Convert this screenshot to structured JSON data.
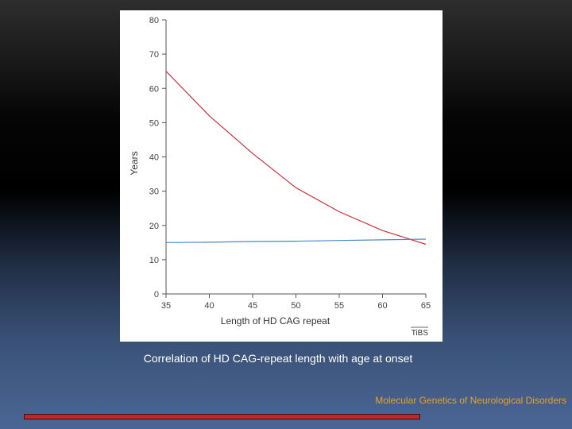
{
  "slide": {
    "caption": "Correlation of HD CAG-repeat length with age at onset",
    "footer_title": "Molecular Genetics of Neurological Disorders"
  },
  "chart_data": {
    "type": "line",
    "title": "",
    "xlabel": "Length of HD CAG repeat",
    "ylabel": "Years",
    "xlim": [
      35,
      65
    ],
    "ylim": [
      0,
      80
    ],
    "x_ticks": [
      35,
      40,
      45,
      50,
      55,
      60,
      65
    ],
    "y_ticks": [
      0,
      10,
      20,
      30,
      40,
      50,
      60,
      70,
      80
    ],
    "grid": false,
    "legend": "none",
    "credit": "TiBS",
    "series": [
      {
        "color": "#c8323c",
        "x": [
          35,
          40,
          45,
          50,
          55,
          60,
          65
        ],
        "y": [
          65,
          52,
          41,
          31,
          24,
          18.5,
          14.5
        ]
      },
      {
        "color": "#4a86c8",
        "x": [
          35,
          40,
          45,
          50,
          55,
          60,
          65
        ],
        "y": [
          15,
          15.1,
          15.3,
          15.4,
          15.6,
          15.8,
          16
        ]
      }
    ]
  }
}
